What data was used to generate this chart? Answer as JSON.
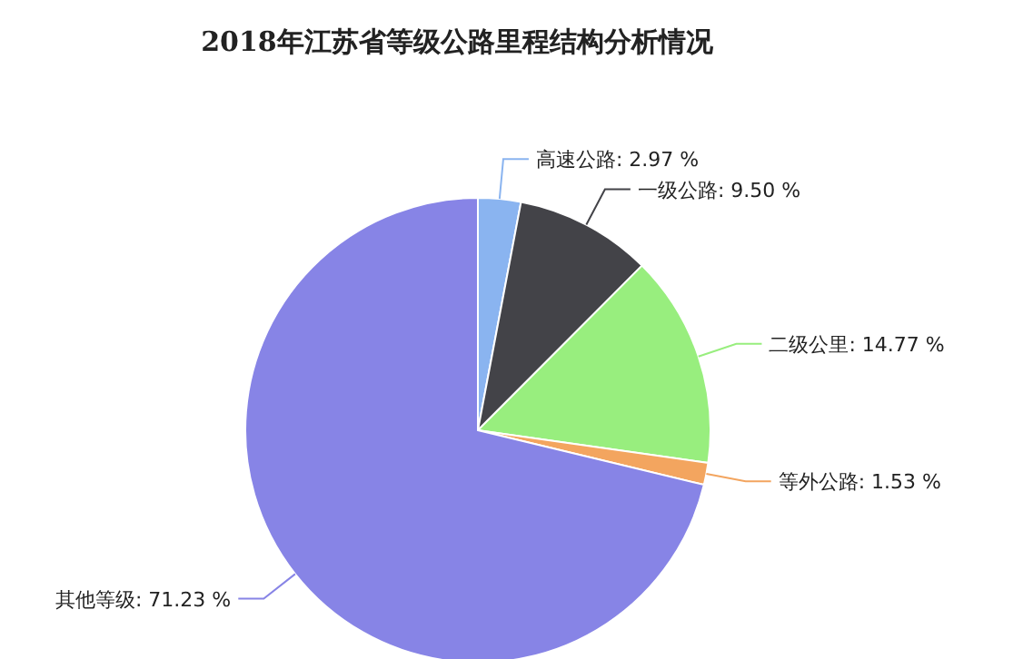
{
  "chart_data": {
    "type": "pie",
    "title": "2018年江苏省等级公路里程结构分析情况",
    "categories": [
      "高速公路",
      "一级公路",
      "二级公里",
      "等外公路",
      "其他等级"
    ],
    "values": [
      2.97,
      9.5,
      14.77,
      1.53,
      71.23
    ],
    "value_labels": [
      "2.97 %",
      "9.50 %",
      "14.77 %",
      "1.53 %",
      "71.23 %"
    ],
    "colors": [
      "#8ab4f0",
      "#434348",
      "#98ee7e",
      "#f3a55f",
      "#8784e6"
    ]
  }
}
